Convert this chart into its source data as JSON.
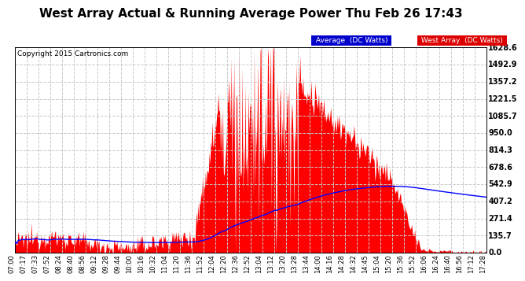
{
  "title": "West Array Actual & Running Average Power Thu Feb 26 17:43",
  "copyright": "Copyright 2015 Cartronics.com",
  "legend_avg": "Average  (DC Watts)",
  "legend_west": "West Array  (DC Watts)",
  "ylabel_values": [
    0.0,
    135.7,
    271.4,
    407.2,
    542.9,
    678.6,
    814.3,
    950.0,
    1085.7,
    1221.5,
    1357.2,
    1492.9,
    1628.6
  ],
  "ymax": 1628.6,
  "ymin": 0.0,
  "bg_color": "#ffffff",
  "plot_bg_color": "#ffffff",
  "grid_color": "#c8c8c8",
  "west_array_color": "#ff0000",
  "avg_color": "#0000ff",
  "title_fontsize": 11,
  "tick_fontsize": 6.5,
  "xtick_labels": [
    "07:00",
    "07:17",
    "07:33",
    "07:52",
    "08:24",
    "08:40",
    "08:56",
    "09:12",
    "09:28",
    "09:44",
    "10:00",
    "10:16",
    "10:32",
    "11:04",
    "11:20",
    "11:36",
    "11:52",
    "12:04",
    "12:20",
    "12:36",
    "12:52",
    "13:04",
    "13:12",
    "13:20",
    "13:28",
    "13:44",
    "14:00",
    "14:16",
    "14:28",
    "14:32",
    "14:45",
    "15:04",
    "15:20",
    "15:36",
    "15:52",
    "16:06",
    "16:24",
    "16:40",
    "16:56",
    "17:12",
    "17:28"
  ]
}
